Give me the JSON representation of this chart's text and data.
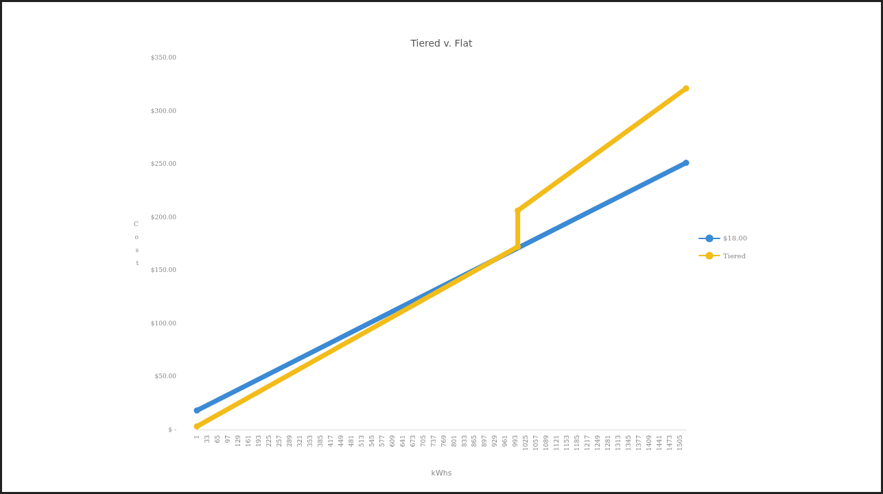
{
  "chart_data": {
    "type": "line",
    "title": "Tiered v. Flat",
    "xlabel": "kWhs",
    "ylabel": "Cost",
    "series": [
      {
        "name": "$18.00",
        "color": "#3b8ad4",
        "x": [
          1,
          1524
        ],
        "values": [
          18,
          251
        ]
      },
      {
        "name": "Tiered",
        "color": "#f2bc1a",
        "x": [
          1,
          1000,
          1000,
          1524
        ],
        "values": [
          3,
          172,
          206,
          321
        ]
      }
    ],
    "xlim": [
      1,
      1524
    ],
    "xticks": [
      1,
      33,
      65,
      97,
      129,
      161,
      193,
      225,
      257,
      289,
      321,
      353,
      385,
      417,
      449,
      481,
      513,
      545,
      577,
      609,
      641,
      673,
      705,
      737,
      769,
      801,
      833,
      865,
      897,
      929,
      961,
      993,
      1025,
      1057,
      1089,
      1121,
      1153,
      1185,
      1217,
      1249,
      1281,
      1313,
      1345,
      1377,
      1409,
      1441,
      1473,
      1505
    ],
    "ylim": [
      0,
      350
    ],
    "yticks": [
      {
        "value": 0,
        "label": "$ -"
      },
      {
        "value": 50,
        "label": "$50.00"
      },
      {
        "value": 100,
        "label": "$100.00"
      },
      {
        "value": 150,
        "label": "$150.00"
      },
      {
        "value": 200,
        "label": "$200.00"
      },
      {
        "value": 250,
        "label": "$250.00"
      },
      {
        "value": 300,
        "label": "$300.00"
      },
      {
        "value": 350,
        "label": "$350.00"
      }
    ],
    "grid": false,
    "legend": "right",
    "marker": "circle",
    "line_style": "solid"
  }
}
